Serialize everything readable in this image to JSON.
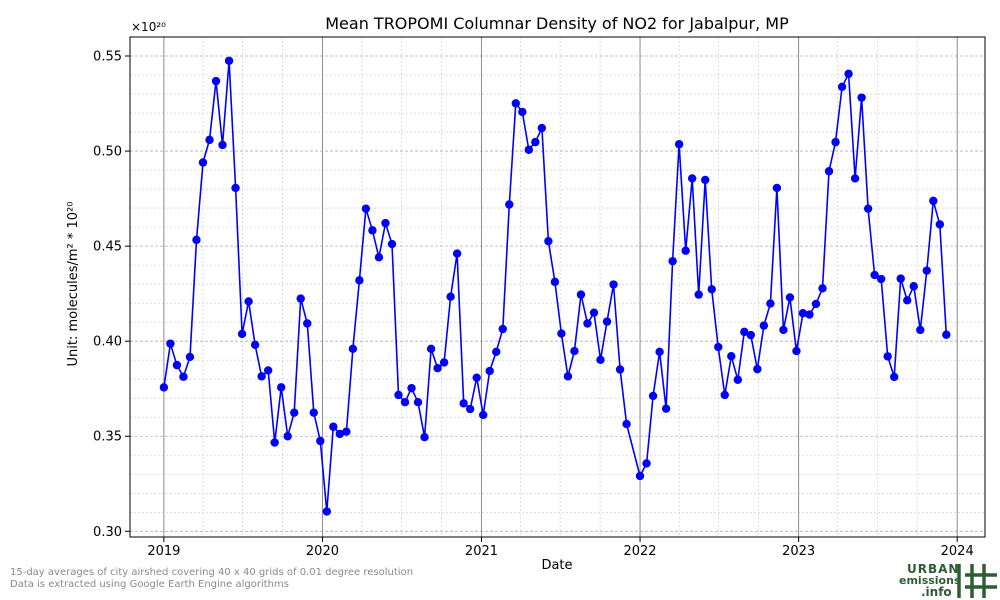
{
  "chart_data": {
    "type": "line",
    "title": "Mean TROPOMI Columnar Density of NO2 for Jabalpur, MP",
    "xlabel": "Date",
    "ylabel": "Unit: molecules/m² * 10²⁰",
    "y_multiplier_label": "×10²⁰",
    "xlim": [
      "2018-10-15",
      "2024-03-05"
    ],
    "ylim": [
      0.297,
      0.56
    ],
    "x_ticks": [
      "2019",
      "2020",
      "2021",
      "2022",
      "2023",
      "2024"
    ],
    "x_tick_dates": [
      "2019-01-01",
      "2020-01-01",
      "2021-01-01",
      "2022-01-01",
      "2023-01-01",
      "2024-01-01"
    ],
    "y_ticks": [
      0.3,
      0.35,
      0.4,
      0.45,
      0.5,
      0.55
    ],
    "y_tick_labels": [
      "0.30",
      "0.35",
      "0.40",
      "0.45",
      "0.50",
      "0.55"
    ],
    "grid": true,
    "legend": "none",
    "series": [
      {
        "color": "#0000ff",
        "marker": "circle",
        "points": [
          [
            "2019-01-01",
            0.3757
          ],
          [
            "2019-01-16",
            0.3987
          ],
          [
            "2019-01-31",
            0.3874
          ],
          [
            "2019-02-15",
            0.3813
          ],
          [
            "2019-03-02",
            0.3917
          ],
          [
            "2019-03-17",
            0.4533
          ],
          [
            "2019-04-01",
            0.494
          ],
          [
            "2019-04-16",
            0.5059
          ],
          [
            "2019-05-01",
            0.5368
          ],
          [
            "2019-05-16",
            0.5032
          ],
          [
            "2019-05-31",
            0.5475
          ],
          [
            "2019-06-15",
            0.4806
          ],
          [
            "2019-06-30",
            0.4038
          ],
          [
            "2019-07-15",
            0.4209
          ],
          [
            "2019-07-30",
            0.3981
          ],
          [
            "2019-08-14",
            0.3815
          ],
          [
            "2019-08-29",
            0.3846
          ],
          [
            "2019-09-13",
            0.3467
          ],
          [
            "2019-09-28",
            0.3757
          ],
          [
            "2019-10-13",
            0.35
          ],
          [
            "2019-10-28",
            0.3624
          ],
          [
            "2019-11-12",
            0.4224
          ],
          [
            "2019-11-27",
            0.4093
          ],
          [
            "2019-12-12",
            0.3624
          ],
          [
            "2019-12-27",
            0.3475
          ],
          [
            "2020-01-11",
            0.3104
          ],
          [
            "2020-01-26",
            0.355
          ],
          [
            "2020-02-10",
            0.3512
          ],
          [
            "2020-02-25",
            0.3524
          ],
          [
            "2020-03-11",
            0.396
          ],
          [
            "2020-03-26",
            0.432
          ],
          [
            "2020-04-10",
            0.4697
          ],
          [
            "2020-04-25",
            0.4583
          ],
          [
            "2020-05-10",
            0.4441
          ],
          [
            "2020-05-25",
            0.4621
          ],
          [
            "2020-06-09",
            0.4511
          ],
          [
            "2020-06-24",
            0.3717
          ],
          [
            "2020-07-09",
            0.3679
          ],
          [
            "2020-07-24",
            0.3753
          ],
          [
            "2020-08-08",
            0.3679
          ],
          [
            "2020-08-23",
            0.3495
          ],
          [
            "2020-09-07",
            0.396
          ],
          [
            "2020-09-22",
            0.3858
          ],
          [
            "2020-10-07",
            0.3888
          ],
          [
            "2020-10-22",
            0.4234
          ],
          [
            "2020-11-06",
            0.4461
          ],
          [
            "2020-11-21",
            0.3673
          ],
          [
            "2020-12-06",
            0.3643
          ],
          [
            "2020-12-21",
            0.3808
          ],
          [
            "2021-01-05",
            0.3612
          ],
          [
            "2021-01-20",
            0.3843
          ],
          [
            "2021-02-04",
            0.3944
          ],
          [
            "2021-02-19",
            0.4064
          ],
          [
            "2021-03-06",
            0.4719
          ],
          [
            "2021-03-21",
            0.5251
          ],
          [
            "2021-04-05",
            0.5206
          ],
          [
            "2021-04-20",
            0.5007
          ],
          [
            "2021-05-05",
            0.5047
          ],
          [
            "2021-05-20",
            0.5121
          ],
          [
            "2021-06-04",
            0.4526
          ],
          [
            "2021-06-19",
            0.4312
          ],
          [
            "2021-07-04",
            0.404
          ],
          [
            "2021-07-19",
            0.3815
          ],
          [
            "2021-08-03",
            0.3948
          ],
          [
            "2021-08-18",
            0.4245
          ],
          [
            "2021-09-02",
            0.4093
          ],
          [
            "2021-09-17",
            0.415
          ],
          [
            "2021-10-02",
            0.3902
          ],
          [
            "2021-10-17",
            0.4103
          ],
          [
            "2021-11-01",
            0.4298
          ],
          [
            "2021-11-16",
            0.3851
          ],
          [
            "2021-12-01",
            0.3564
          ],
          [
            "2022-01-01",
            0.3291
          ],
          [
            "2022-01-16",
            0.3357
          ],
          [
            "2022-01-31",
            0.3712
          ],
          [
            "2022-02-15",
            0.3944
          ],
          [
            "2022-03-02",
            0.3645
          ],
          [
            "2022-03-17",
            0.4421
          ],
          [
            "2022-04-01",
            0.5036
          ],
          [
            "2022-04-16",
            0.4476
          ],
          [
            "2022-05-01",
            0.4856
          ],
          [
            "2022-05-16",
            0.4245
          ],
          [
            "2022-05-31",
            0.4848
          ],
          [
            "2022-06-15",
            0.4273
          ],
          [
            "2022-06-30",
            0.3969
          ],
          [
            "2022-07-15",
            0.3717
          ],
          [
            "2022-07-30",
            0.3921
          ],
          [
            "2022-08-14",
            0.3797
          ],
          [
            "2022-08-29",
            0.4049
          ],
          [
            "2022-09-13",
            0.4032
          ],
          [
            "2022-09-28",
            0.3853
          ],
          [
            "2022-10-13",
            0.4082
          ],
          [
            "2022-10-28",
            0.4198
          ],
          [
            "2022-11-12",
            0.4806
          ],
          [
            "2022-11-27",
            0.4059
          ],
          [
            "2022-12-12",
            0.423
          ],
          [
            "2022-12-27",
            0.3948
          ],
          [
            "2023-01-11",
            0.4147
          ],
          [
            "2023-01-26",
            0.414
          ],
          [
            "2023-02-10",
            0.4196
          ],
          [
            "2023-02-25",
            0.4278
          ],
          [
            "2023-03-12",
            0.4894
          ],
          [
            "2023-03-27",
            0.5047
          ],
          [
            "2023-04-11",
            0.5338
          ],
          [
            "2023-04-26",
            0.5406
          ],
          [
            "2023-05-11",
            0.4856
          ],
          [
            "2023-05-26",
            0.5281
          ],
          [
            "2023-06-10",
            0.4697
          ],
          [
            "2023-06-25",
            0.4348
          ],
          [
            "2023-07-10",
            0.4327
          ],
          [
            "2023-07-25",
            0.392
          ],
          [
            "2023-08-09",
            0.3812
          ],
          [
            "2023-08-24",
            0.4329
          ],
          [
            "2023-09-08",
            0.4215
          ],
          [
            "2023-09-23",
            0.4289
          ],
          [
            "2023-10-08",
            0.4059
          ],
          [
            "2023-10-23",
            0.4371
          ],
          [
            "2023-11-07",
            0.4738
          ],
          [
            "2023-11-22",
            0.4614
          ],
          [
            "2023-12-07",
            0.4034
          ]
        ]
      }
    ]
  },
  "footnotes": {
    "line1": "15-day averages of city airshed covering 40 x 40 grids of 0.01 degree resolution",
    "line2": "Data is extracted using Google Earth Engine algorithms"
  },
  "logo": {
    "line1": "URBAN",
    "line2": "emissions",
    "line3": ".info",
    "color": "#2f5d32"
  }
}
